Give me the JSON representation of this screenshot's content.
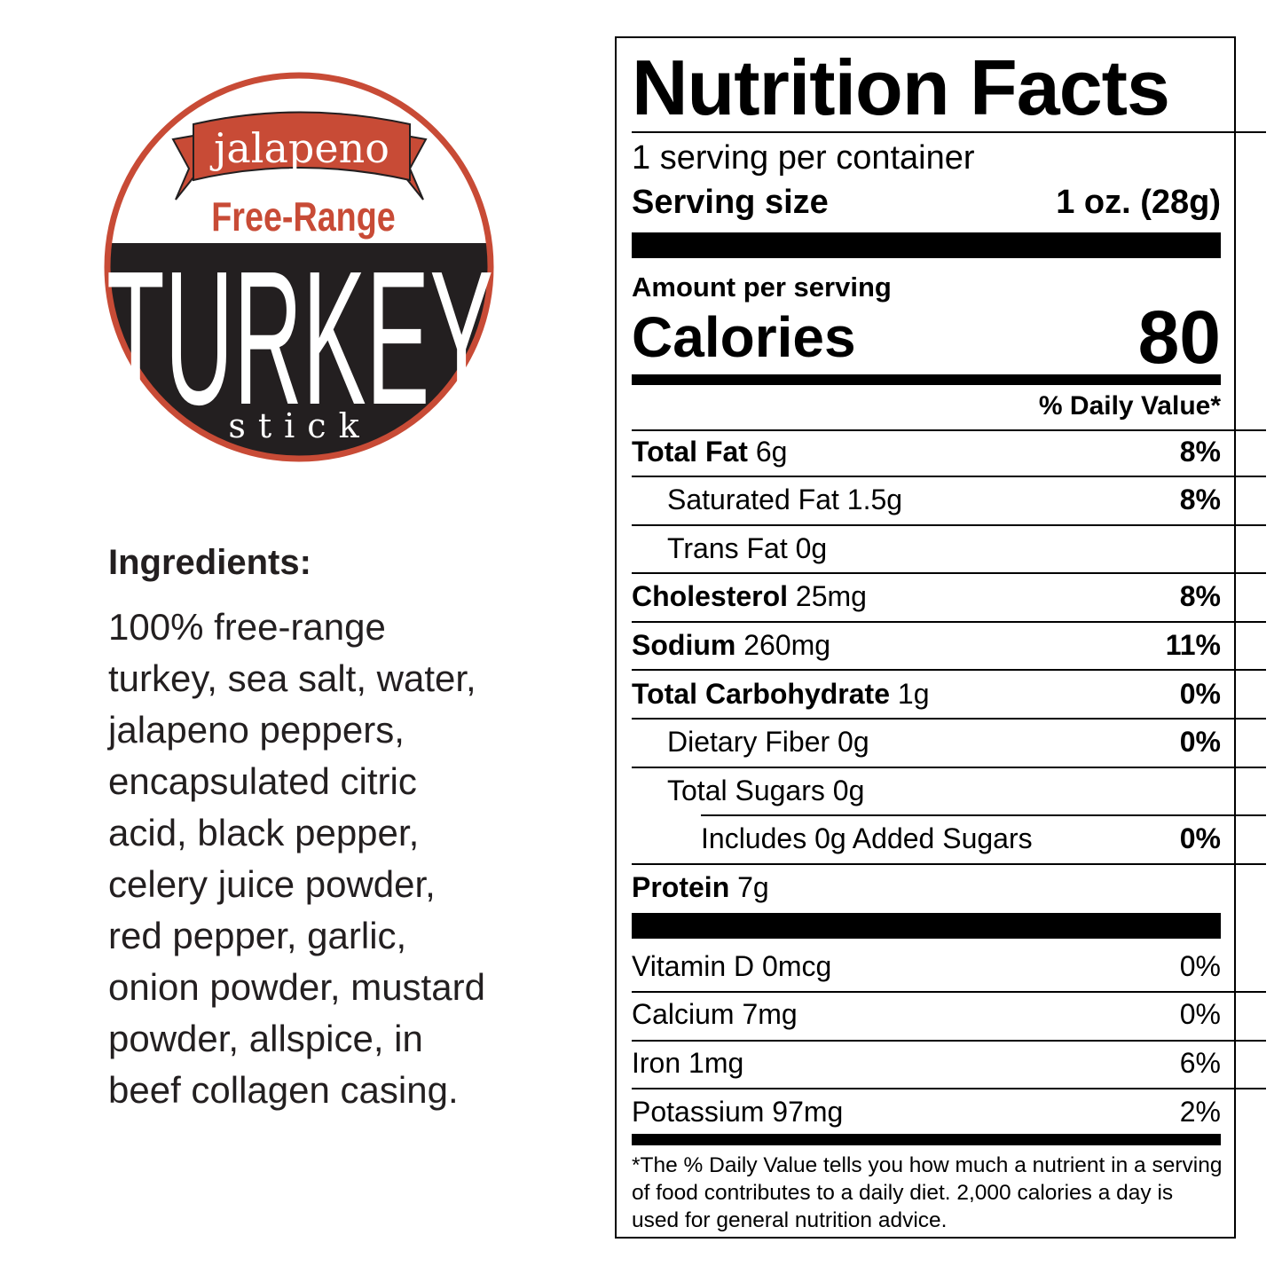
{
  "logo": {
    "banner": "jalapeno",
    "subtitle": "Free-Range",
    "title": "TURKEY",
    "tagline": "stick",
    "colors": {
      "red": "#c84b36",
      "dark": "#231f20"
    }
  },
  "ingredients": {
    "heading": "Ingredients:",
    "lines": [
      "100% free-range",
      "turkey, sea salt, water,",
      "jalapeno peppers,",
      "encapsulated citric",
      "acid, black pepper,",
      "celery juice powder,",
      "red pepper, garlic,",
      "onion powder, mustard",
      "powder, allspice, in",
      "beef collagen casing."
    ]
  },
  "nutrition": {
    "title": "Nutrition Facts",
    "servings_per_container": "1 serving per container",
    "serving_size_label": "Serving size",
    "serving_size_value": "1 oz. (28g)",
    "amount_per_serving": "Amount per serving",
    "calories_label": "Calories",
    "calories_value": "80",
    "dv_header": "% Daily Value*",
    "nutrients": [
      {
        "name": "Total Fat",
        "amount": "6g",
        "dv": "8%"
      },
      {
        "name": "Saturated Fat",
        "amount": "1.5g",
        "dv": "8%"
      },
      {
        "name": "Trans Fat",
        "amount": "0g",
        "dv": ""
      },
      {
        "name": "Cholesterol",
        "amount": "25mg",
        "dv": "8%"
      },
      {
        "name": "Sodium",
        "amount": "260mg",
        "dv": "11%"
      },
      {
        "name": "Total Carbohydrate",
        "amount": "1g",
        "dv": "0%"
      },
      {
        "name": "Dietary Fiber",
        "amount": "0g",
        "dv": "0%"
      },
      {
        "name": "Total Sugars",
        "amount": "0g",
        "dv": ""
      },
      {
        "name": "Includes 0g Added Sugars",
        "amount": "",
        "dv": "0%"
      },
      {
        "name": "Protein",
        "amount": "7g",
        "dv": ""
      }
    ],
    "vitamins": [
      {
        "name": "Vitamin D 0mcg",
        "dv": "0%"
      },
      {
        "name": "Calcium 7mg",
        "dv": "0%"
      },
      {
        "name": "Iron 1mg",
        "dv": "6%"
      },
      {
        "name": "Potassium 97mg",
        "dv": "2%"
      }
    ],
    "footnote": "*The % Daily Value tells you how much a nutrient in a serving of food contributes to a daily diet. 2,000 calories a day is used for general nutrition advice."
  }
}
